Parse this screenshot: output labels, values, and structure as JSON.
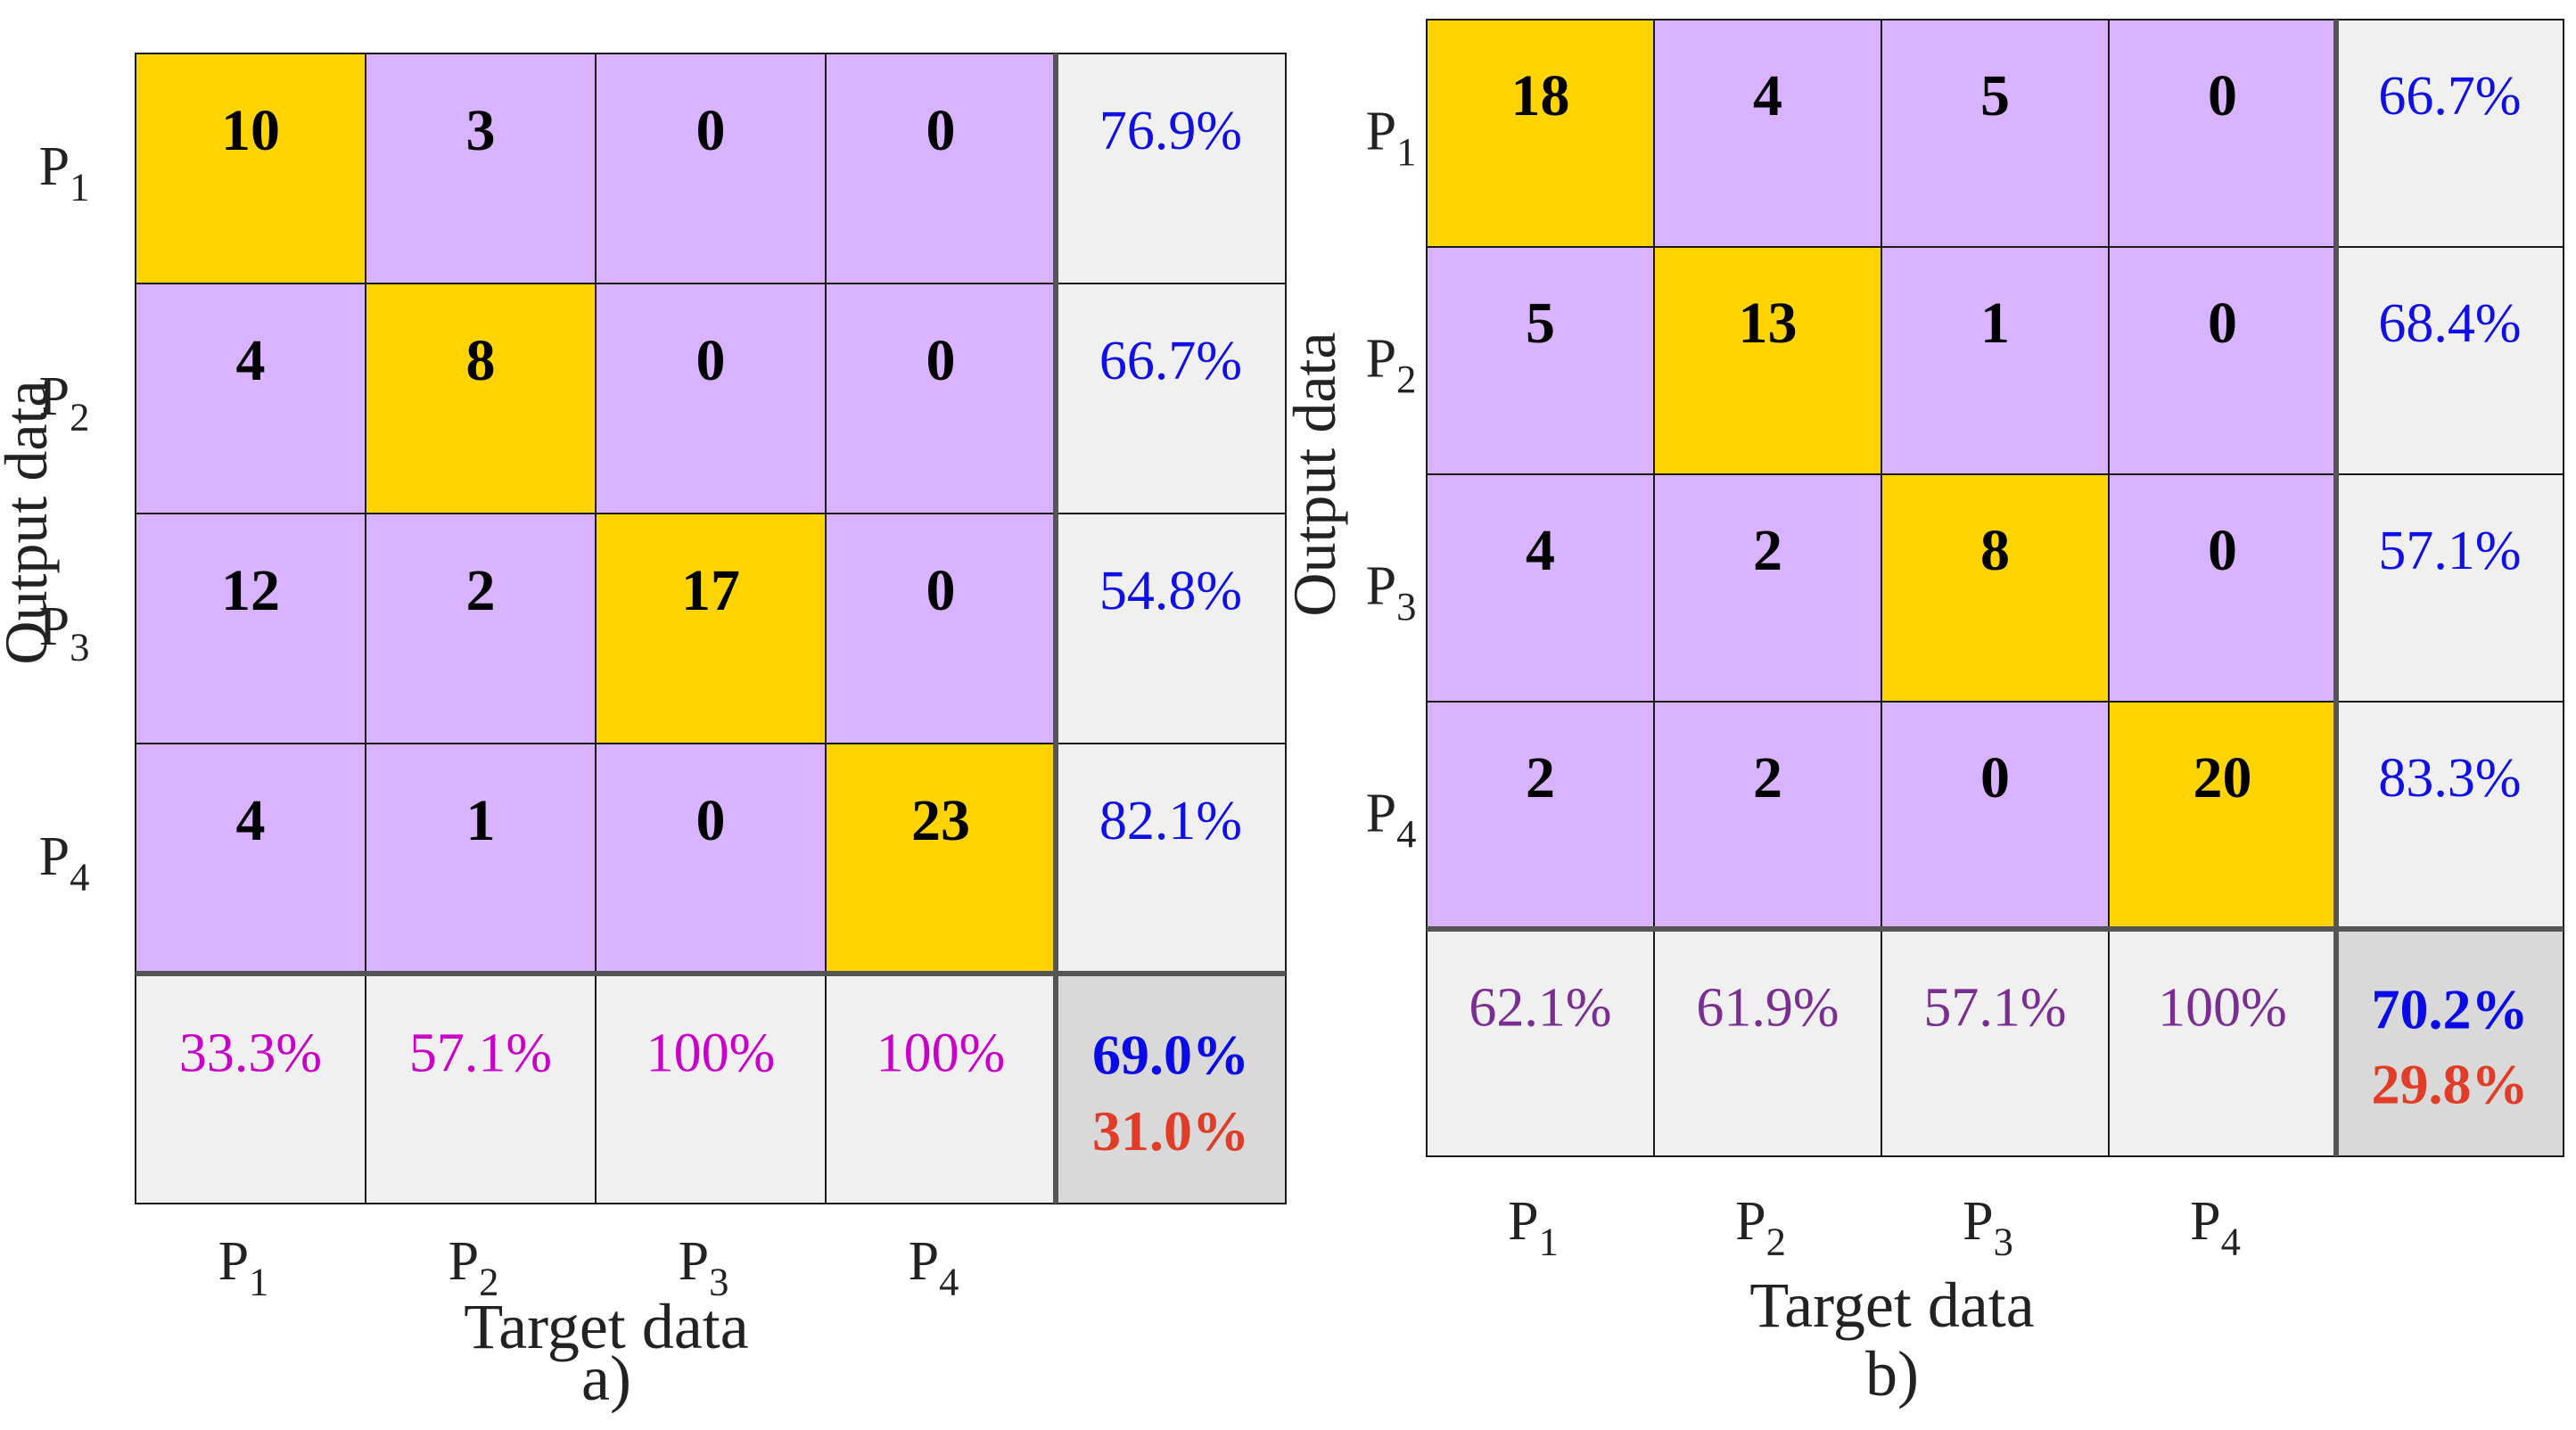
{
  "colors": {
    "diagonal": "#FFD400",
    "offdiagonal": "#D9B3FF",
    "summary_bg": "#F0F0F0",
    "overall_bg": "#D9D9D9",
    "row_percent": "#1010E6",
    "col_percent_a": "#C800C8",
    "col_percent_b": "#7A2E91",
    "overall_correct": "#0A0AE6",
    "overall_error": "#E03C28",
    "count_text": "#000000"
  },
  "chart_data": [
    {
      "type": "heatmap",
      "panel_label": "a)",
      "xlabel": "Target data",
      "ylabel": "Output data",
      "row_labels": [
        "P1",
        "P2",
        "P3",
        "P4"
      ],
      "col_labels": [
        "P1",
        "P2",
        "P3",
        "P4"
      ],
      "matrix": [
        [
          10,
          3,
          0,
          0
        ],
        [
          4,
          8,
          0,
          0
        ],
        [
          12,
          2,
          17,
          0
        ],
        [
          4,
          1,
          0,
          23
        ]
      ],
      "row_percent": [
        "76.9%",
        "66.7%",
        "54.8%",
        "82.1%"
      ],
      "col_percent": [
        "33.3%",
        "57.1%",
        "100%",
        "100%"
      ],
      "overall_correct": "69.0%",
      "overall_error": "31.0%"
    },
    {
      "type": "heatmap",
      "panel_label": "b)",
      "xlabel": "Target data",
      "ylabel": "Output data",
      "row_labels": [
        "P1",
        "P2",
        "P3",
        "P4"
      ],
      "col_labels": [
        "P1",
        "P2",
        "P3",
        "P4"
      ],
      "matrix": [
        [
          18,
          4,
          5,
          0
        ],
        [
          5,
          13,
          1,
          0
        ],
        [
          4,
          2,
          8,
          0
        ],
        [
          2,
          2,
          0,
          20
        ]
      ],
      "row_percent": [
        "66.7%",
        "68.4%",
        "57.1%",
        "83.3%"
      ],
      "col_percent": [
        "62.1%",
        "61.9%",
        "57.1%",
        "100%"
      ],
      "overall_correct": "70.2%",
      "overall_error": "29.8%"
    }
  ]
}
